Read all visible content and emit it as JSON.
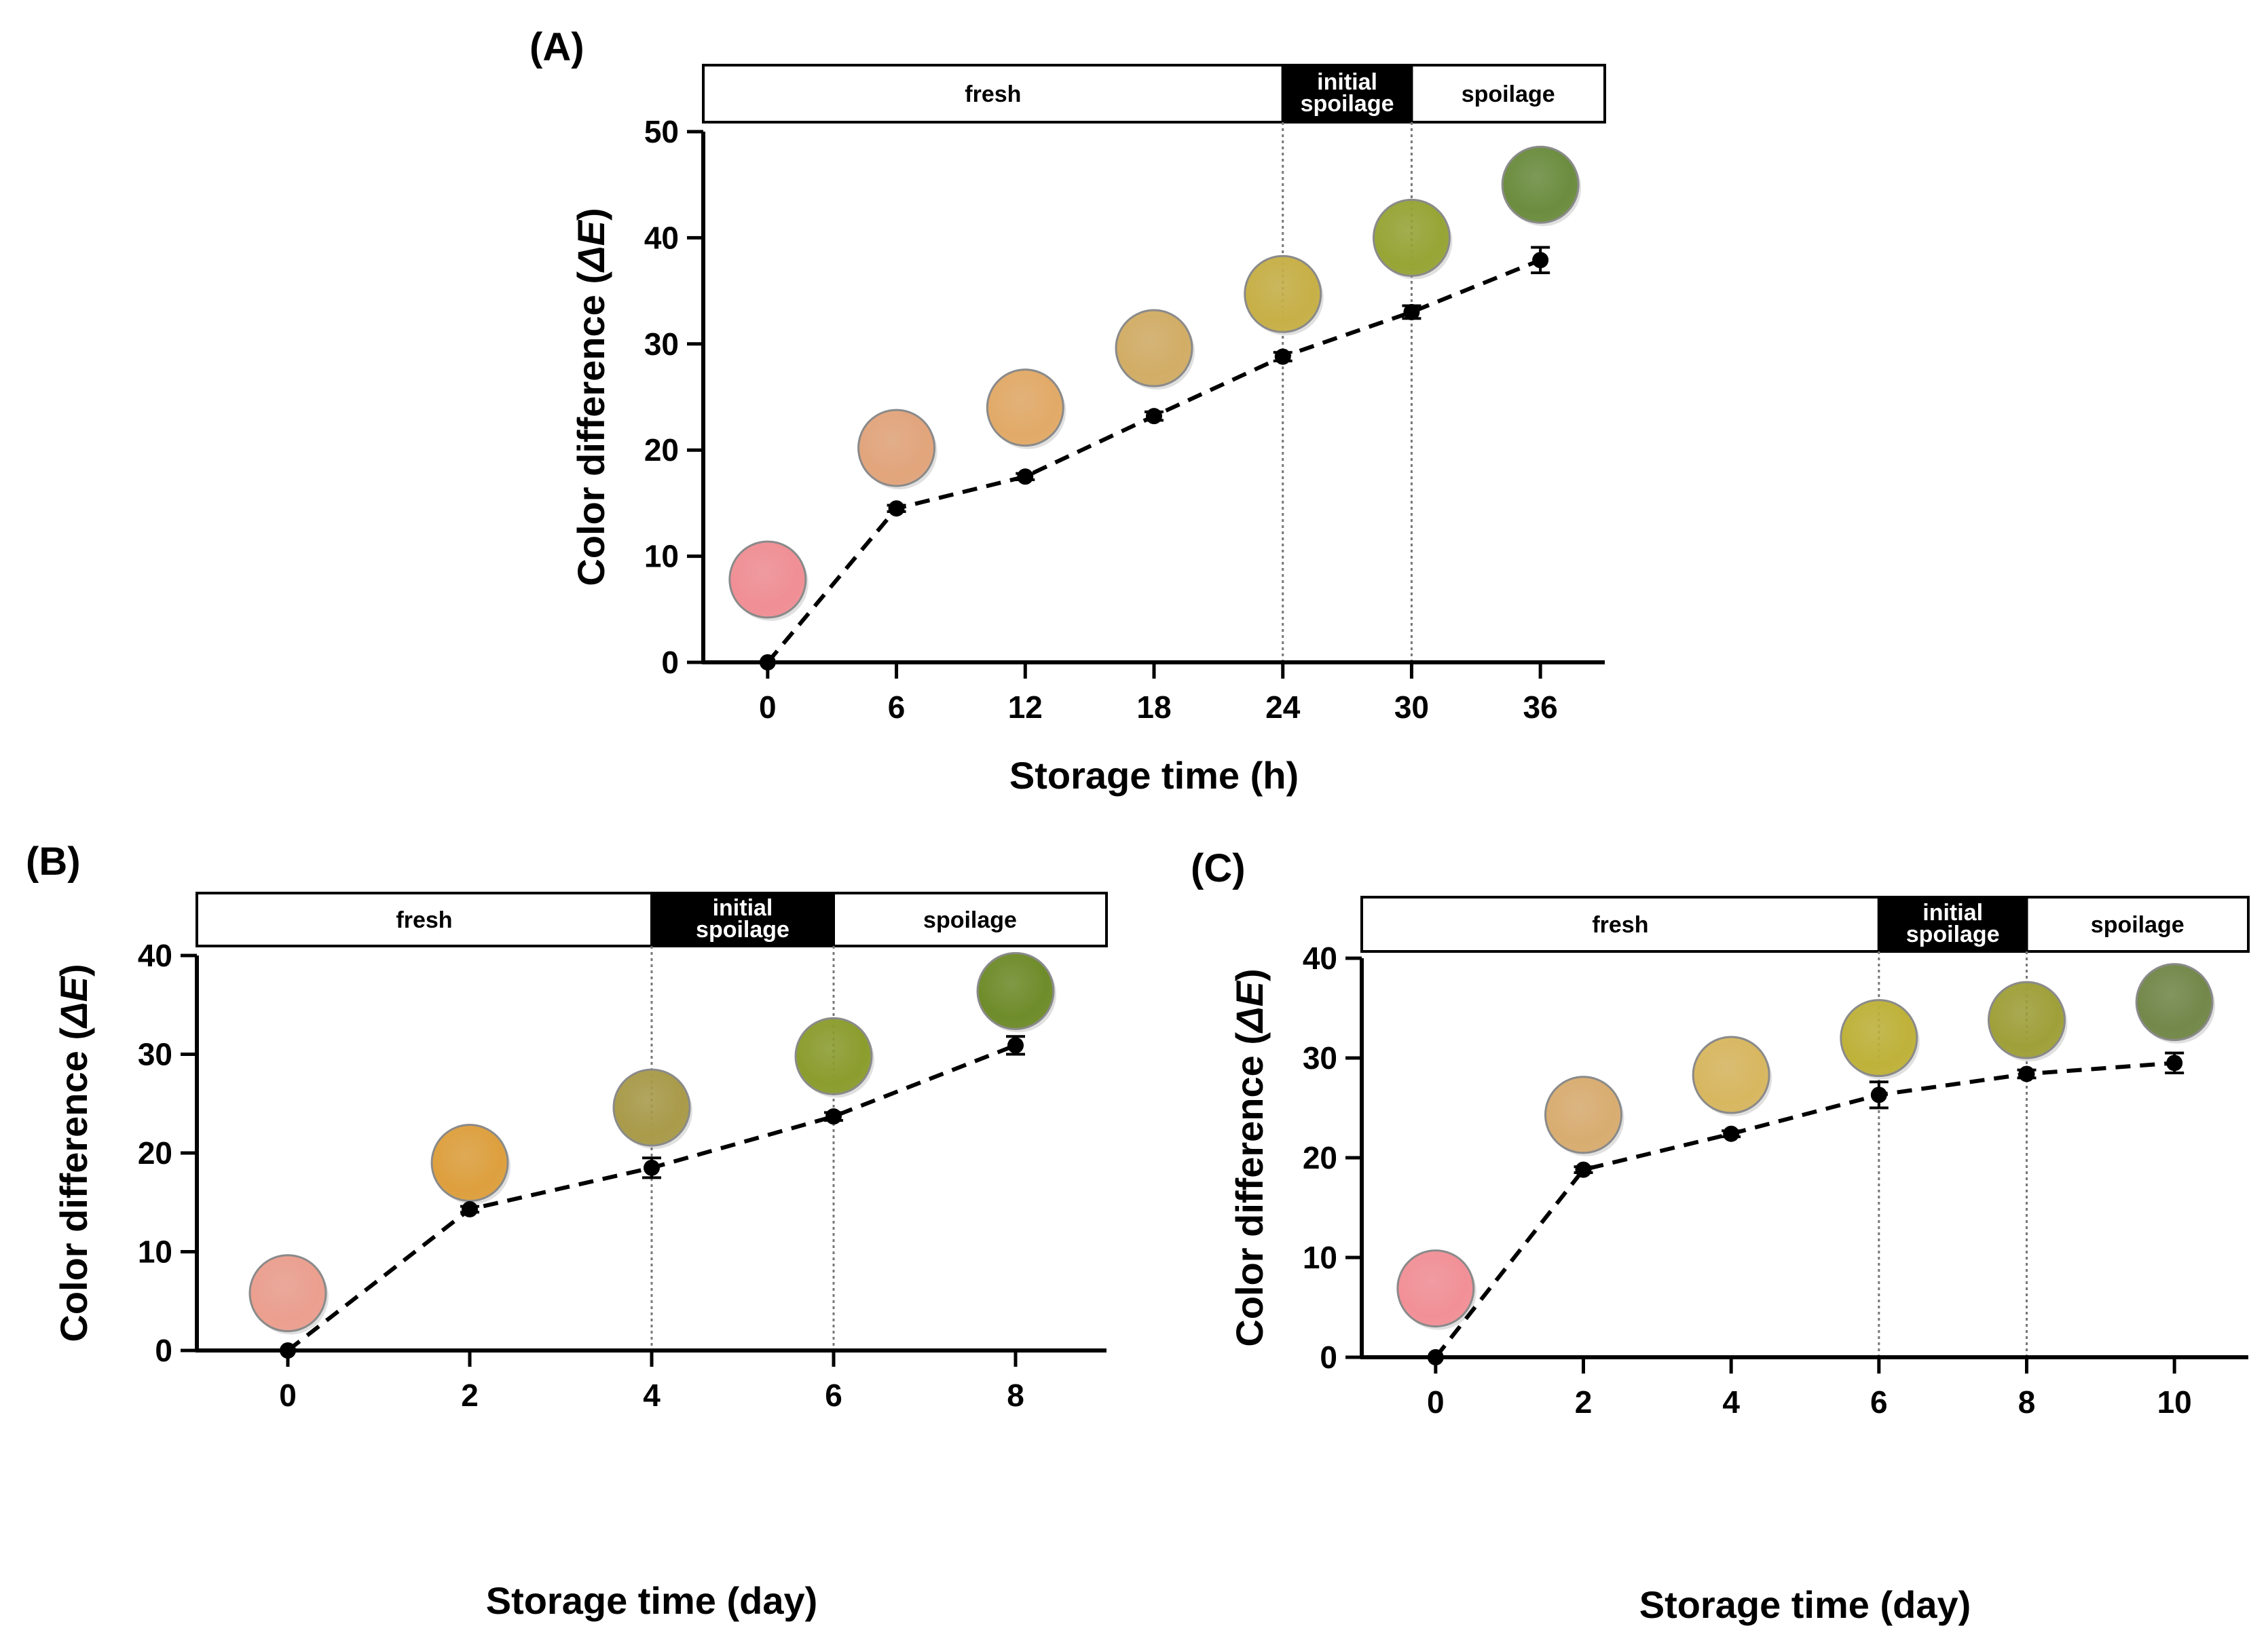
{
  "chart_data": [
    {
      "type": "line",
      "panel_label": "(A)",
      "xlabel": "Storage time (h)",
      "ylabel_main": "Color difference (",
      "ylabel_italic": "ΔE",
      "ylabel_end": ")",
      "x": [
        0,
        6,
        12,
        18,
        24,
        30,
        36
      ],
      "x_ticks": [
        "0",
        "6",
        "12",
        "18",
        "24",
        "30",
        "36"
      ],
      "y_ticks": [
        0,
        10,
        20,
        30,
        40,
        50
      ],
      "xlim": [
        -3,
        39
      ],
      "ylim": [
        0,
        50
      ],
      "values": [
        0,
        14.5,
        17.5,
        23.2,
        28.8,
        33.0,
        37.9
      ],
      "errors": [
        0,
        0.3,
        0.3,
        0.4,
        0.4,
        0.6,
        1.2
      ],
      "swatch_colors": [
        "#f08f95",
        "#e2a57c",
        "#e2aa68",
        "#d2ad66",
        "#c7b047",
        "#97a536",
        "#6c8d3f"
      ],
      "swatch_y": [
        7.8,
        20.2,
        24.0,
        29.6,
        34.7,
        40.0,
        45.0
      ],
      "phases": [
        {
          "label": "fresh",
          "dark": false,
          "x_start": -3,
          "x_end": 24
        },
        {
          "label_line1": "initial",
          "label_line2": "spoilage",
          "dark": true,
          "x_start": 24,
          "x_end": 30
        },
        {
          "label": "spoilage",
          "dark": false,
          "x_start": 30,
          "x_end": 39
        }
      ],
      "phase_boundaries": [
        24,
        30
      ]
    },
    {
      "type": "line",
      "panel_label": "(B)",
      "xlabel": "Storage time (day)",
      "ylabel_main": "Color difference (",
      "ylabel_italic": "ΔE",
      "ylabel_end": ")",
      "x": [
        0,
        2,
        4,
        6,
        8
      ],
      "x_ticks": [
        "0",
        "2",
        "4",
        "6",
        "8"
      ],
      "y_ticks": [
        0,
        10,
        20,
        30,
        40
      ],
      "xlim": [
        -1,
        9
      ],
      "ylim": [
        0,
        40
      ],
      "values": [
        0,
        14.3,
        18.5,
        23.7,
        30.9
      ],
      "errors": [
        0,
        0.3,
        1.0,
        0.4,
        0.9
      ],
      "swatch_colors": [
        "#eb9f8f",
        "#dea03e",
        "#a99b4a",
        "#8c9d2e",
        "#6f8c2a"
      ],
      "swatch_y": [
        5.8,
        19.0,
        24.6,
        29.8,
        36.4
      ],
      "phases": [
        {
          "label": "fresh",
          "dark": false,
          "x_start": -1,
          "x_end": 4
        },
        {
          "label_line1": "initial",
          "label_line2": "spoilage",
          "dark": true,
          "x_start": 4,
          "x_end": 6
        },
        {
          "label": "spoilage",
          "dark": false,
          "x_start": 6,
          "x_end": 9
        }
      ],
      "phase_boundaries": [
        4,
        6
      ]
    },
    {
      "type": "line",
      "panel_label": "(C)",
      "xlabel": "Storage time (day)",
      "ylabel_main": "Color difference (",
      "ylabel_italic": "ΔE",
      "ylabel_end": ")",
      "x": [
        0,
        2,
        4,
        6,
        8,
        10
      ],
      "x_ticks": [
        "0",
        "2",
        "4",
        "6",
        "8",
        "10"
      ],
      "y_ticks": [
        0,
        10,
        20,
        30,
        40
      ],
      "xlim": [
        -1,
        11
      ],
      "ylim": [
        0,
        40
      ],
      "values": [
        0,
        18.8,
        22.4,
        26.3,
        28.4,
        29.5
      ],
      "errors": [
        0,
        0.3,
        0.3,
        1.3,
        0.4,
        1.0
      ],
      "swatch_colors": [
        "#f29097",
        "#d9ad71",
        "#d8b760",
        "#bfb23a",
        "#a0a03a",
        "#73884a"
      ],
      "swatch_y": [
        6.9,
        24.3,
        28.3,
        32.0,
        33.8,
        35.6
      ],
      "phases": [
        {
          "label": "fresh",
          "dark": false,
          "x_start": -1,
          "x_end": 6
        },
        {
          "label_line1": "initial",
          "label_line2": "spoilage",
          "dark": true,
          "x_start": 6,
          "x_end": 8
        },
        {
          "label": "spoilage",
          "dark": false,
          "x_start": 8,
          "x_end": 11
        }
      ],
      "phase_boundaries": [
        6,
        8
      ]
    }
  ]
}
